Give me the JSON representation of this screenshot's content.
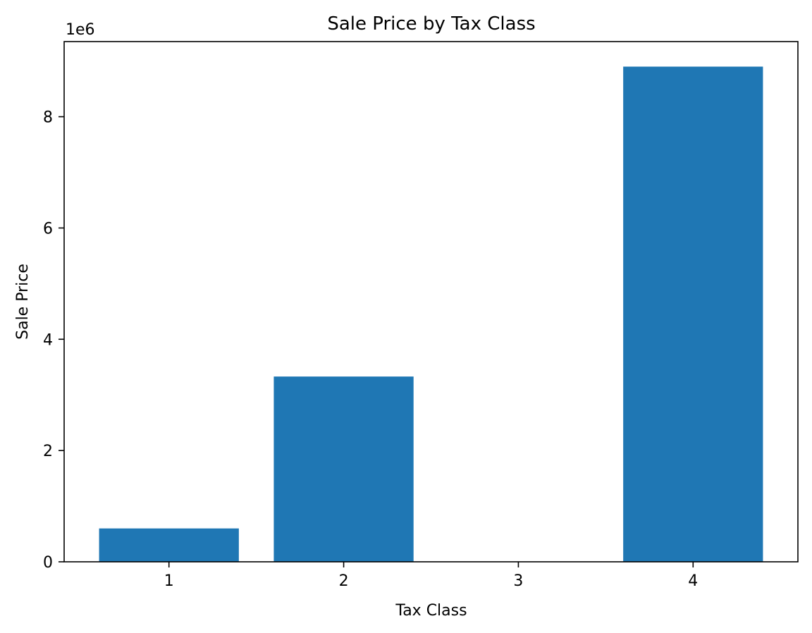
{
  "chart_data": {
    "type": "bar",
    "title": "Sale Price by Tax Class",
    "xlabel": "Tax Class",
    "ylabel": "Sale Price",
    "y_offset_label": "1e6",
    "categories": [
      "1",
      "2",
      "3",
      "4"
    ],
    "values": [
      600000,
      3330000,
      0,
      8900000
    ],
    "ylim": [
      0,
      9350000
    ],
    "y_ticks": [
      0,
      2000000,
      4000000,
      6000000,
      8000000
    ],
    "y_tick_labels": [
      "0",
      "2",
      "4",
      "6",
      "8"
    ],
    "bar_color": "#1f77b4",
    "grid": false,
    "legend": "none"
  }
}
